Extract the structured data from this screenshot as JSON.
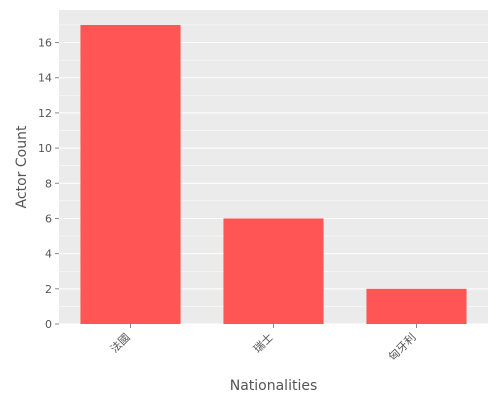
{
  "chart_data": {
    "type": "bar",
    "categories": [
      "法國",
      "瑞士",
      "匈牙利"
    ],
    "values": [
      17,
      6,
      2
    ],
    "xlabel": "Nationalities",
    "ylabel": "Actor Count",
    "ylim": [
      0,
      17.85
    ],
    "yticks": [
      0,
      2,
      4,
      6,
      8,
      10,
      12,
      14,
      16
    ],
    "grid": true,
    "colors": {
      "bar": "#ff5555",
      "panel": "#ebebeb",
      "grid": "#ffffff",
      "text": "#555555"
    }
  }
}
